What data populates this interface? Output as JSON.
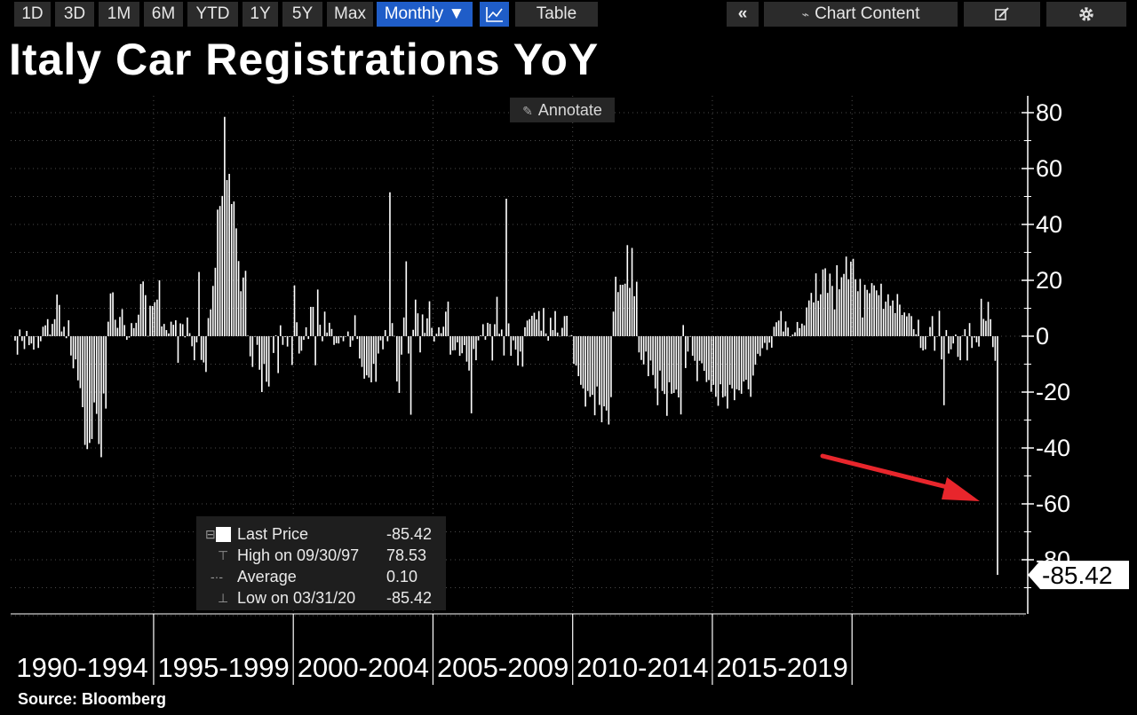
{
  "toolbar": {
    "ranges": [
      "1D",
      "3D",
      "1M",
      "6M",
      "YTD",
      "1Y",
      "5Y",
      "Max"
    ],
    "frequency": "Monthly ▼",
    "table": "Table",
    "collapse": "«",
    "chart_content": "Chart Content"
  },
  "annotate_label": "Annotate",
  "legend": {
    "last_label": "Last Price",
    "last_value": "-85.42",
    "high_label": "High on 09/30/97",
    "high_value": "78.53",
    "avg_label": "Average",
    "avg_value": "0.10",
    "low_label": "Low on 03/31/20",
    "low_value": "-85.42"
  },
  "source": "Source: Bloomberg",
  "colors": {
    "background": "#000000",
    "bars": "#ffffff",
    "arrow": "#e8262c",
    "selected": "#1f5dc8"
  },
  "chart_data": {
    "type": "bar",
    "title": "Italy Car Registrations YoY",
    "frequency": "monthly",
    "x_start": "1990-01",
    "x_end": "2020-03",
    "x_period_labels": [
      "1990-1994",
      "1995-1999",
      "2000-2004",
      "2005-2009",
      "2010-2014",
      "2015-2019"
    ],
    "ylim": [
      -100,
      85
    ],
    "yticks": [
      80,
      60,
      40,
      20,
      0,
      -20,
      -40,
      -60,
      -80
    ],
    "last_value_label": "-85.42",
    "grid": true,
    "annotation": "red arrow pointing to the last bar",
    "values": [
      -1.6,
      -6.6,
      2.4,
      -1.7,
      -4.6,
      1.9,
      -3.2,
      -2.6,
      -4.8,
      -0.1,
      -4.2,
      -1.8,
      3.4,
      3.9,
      6.1,
      0.6,
      4.4,
      6.1,
      14.9,
      11.2,
      1.7,
      3.4,
      -0.7,
      5.7,
      -6.9,
      -11.5,
      -8.3,
      -15.8,
      -18.6,
      -25.4,
      -38.9,
      -40.4,
      -38.2,
      -36.8,
      -23.7,
      -27.8,
      -38.6,
      -43.3,
      -20.5,
      -25.9,
      5.2,
      15.3,
      15.7,
      5.9,
      3.0,
      6.9,
      9.7,
      4.0,
      -1.3,
      -0.5,
      4.7,
      2.9,
      4.8,
      7.7,
      18.7,
      19.6,
      14.7,
      0.1,
      10.9,
      10.8,
      12.2,
      13.1,
      20.0,
      3.5,
      4.4,
      2.2,
      1.0,
      5.2,
      4.1,
      5.7,
      -9.5,
      4.6,
      4.3,
      -0.4,
      6.7,
      1.1,
      -3.6,
      -8.6,
      -2.2,
      23.0,
      -8.5,
      -9.4,
      -12.8,
      6.5,
      9.6,
      18.0,
      24.5,
      45.3,
      46.6,
      50.2,
      78.5,
      55.9,
      58.1,
      47.3,
      48.2,
      38.6,
      26.9,
      16.1,
      21.0,
      23.4,
      0.2,
      -7.2,
      -11.0,
      -0.1,
      -3.1,
      -12.0,
      -20.0,
      -9.9,
      -16.3,
      -18.0,
      -0.2,
      -6.0,
      0.3,
      -13.2,
      3.9,
      -3.1,
      -0.3,
      -3.7,
      -0.3,
      -10.3,
      18.2,
      5.0,
      -6.2,
      -5.2,
      -1.3,
      3.2,
      -1.0,
      10.5,
      10.5,
      -10.4,
      16.7,
      4.1,
      -1.8,
      8.8,
      1.3,
      4.8,
      2.6,
      -3.1,
      -2.5,
      -2.6,
      -0.4,
      -1.8,
      -0.2,
      1.7,
      -3.8,
      -1.5,
      7.5,
      -1.0,
      -8.0,
      -11.0,
      -15.2,
      -14.0,
      -14.8,
      -16.5,
      -9.9,
      -16.3,
      -6.2,
      -1.5,
      -4.7,
      2.2,
      -1.8,
      51.5,
      4.7,
      0.1,
      -16.2,
      -20.3,
      -6.6,
      6.7,
      26.8,
      -6.2,
      -28.1,
      2.3,
      13.1,
      8.2,
      -5.8,
      7.8,
      1.2,
      6.4,
      12.5,
      3.0,
      -1.9,
      0.9,
      3.2,
      1.1,
      3.4,
      8.8,
      12.4,
      -6.6,
      -5.1,
      -5.0,
      -2.2,
      -7.0,
      -6.1,
      -3.2,
      -9.1,
      -12.3,
      -27.6,
      -4.6,
      -8.6,
      -1.5,
      0.3,
      4.3,
      -1.3,
      4.8,
      4.4,
      -8.7,
      4.3,
      14.1,
      0.9,
      2.4,
      -6.9,
      49.2,
      4.6,
      -7.0,
      -1.5,
      -4.8,
      -10.5,
      -5.5,
      -10.9,
      3.2,
      5.6,
      6.1,
      7.3,
      8.4,
      6.0,
      9.0,
      2.0,
      10.1,
      1.0,
      -1.6,
      6.6,
      2.2,
      9.0,
      1.3,
      0.1,
      3.0,
      7.2,
      7.3,
      0.1,
      0.4,
      -9.9,
      -10.5,
      -14.3,
      -17.4,
      -18.7,
      -25.2,
      -19.6,
      -21.7,
      -21.0,
      -28.3,
      -18.0,
      -24.6,
      -30.8,
      -25.1,
      -26.6,
      -31.6,
      -21.8,
      8.8,
      21.3,
      15.8,
      18.4,
      18.4,
      18.8,
      32.6,
      17.3,
      31.6,
      14.3,
      19.5,
      -5.8,
      -8.5,
      -10.1,
      -5.5,
      -14.3,
      -8.7,
      -13.9,
      -18.7,
      -24.7,
      -12.3,
      -19.6,
      -20.7,
      -28.5,
      -16.5,
      -20.6,
      -20.3,
      -19.1,
      -21.9,
      -28.0,
      4.0,
      -11.4,
      -5.5,
      -0.2,
      -7.0,
      -8.8,
      -16.1,
      -8.8,
      -9.7,
      -12.4,
      -16.4,
      -15.7,
      -19.9,
      -17.4,
      -21.7,
      -24.9,
      -17.2,
      -21.9,
      -21.5,
      -25.9,
      -17.4,
      -18.7,
      -22.9,
      -19.0,
      -19.4,
      -20.6,
      -16.2,
      -15.6,
      -19.0,
      -21.7,
      -14.1,
      -10.2,
      -6.3,
      -7.1,
      -4.3,
      -2.4,
      -4.9,
      -2.3,
      -4.1,
      3.4,
      5.0,
      5.6,
      9.0,
      1.7,
      5.3,
      3.1,
      -0.1,
      0.6,
      1.4,
      5.1,
      2.9,
      4.5,
      3.9,
      10.3,
      12.8,
      15.5,
      12.1,
      22.5,
      12.7,
      15.0,
      23.9,
      24.3,
      15.5,
      22.4,
      18.0,
      9.6,
      25.4,
      16.8,
      21.1,
      22.3,
      28.5,
      20.4,
      26.7,
      27.7,
      20.4,
      16.1,
      20.5,
      6.7,
      18.4,
      16.6,
      15.4,
      19.0,
      18.2,
      16.4,
      14.7,
      18.8,
      9.8,
      12.4,
      15.0,
      10.9,
      12.8,
      8.3,
      15.1,
      11.3,
      7.6,
      8.5,
      7.1,
      8.2,
      7.2,
      2.5,
      0.7,
      5.9,
      -4.2,
      -5.1,
      -4.7,
      -0.1,
      3.3,
      7.2,
      -5.2,
      -0.1,
      9.1,
      -8.3,
      -24.7,
      2.2,
      -6.2,
      -4.7,
      -2.6,
      0.6,
      -7.4,
      -8.6,
      0.2,
      2.5,
      -8.7,
      4.7,
      -4.2,
      -0.5,
      -2.2,
      -3.7,
      13.4,
      6.2,
      5.5,
      12.3,
      6.1,
      -3.9,
      -8.8,
      -85.42
    ]
  }
}
